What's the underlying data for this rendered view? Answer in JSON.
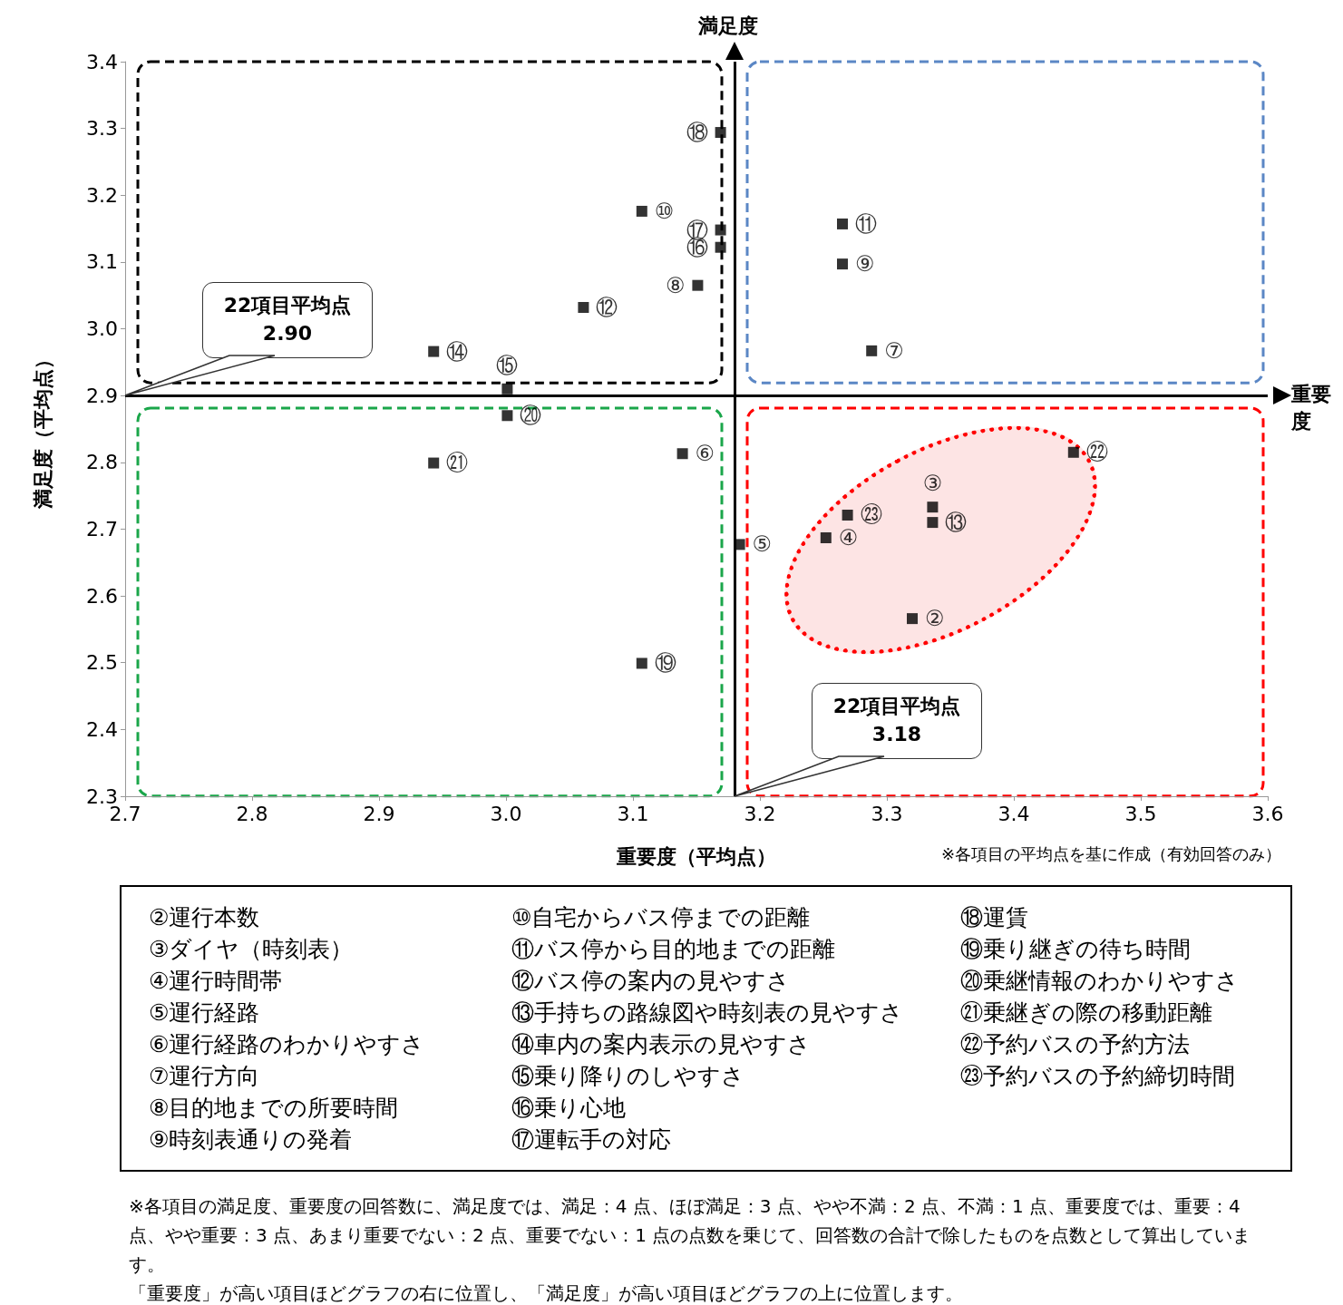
{
  "chart_data": {
    "type": "scatter",
    "xlabel": "重要度（平均点）",
    "ylabel": "満足度（平均点）",
    "xlim": [
      2.7,
      3.6
    ],
    "xticks": [
      2.7,
      2.8,
      2.9,
      {
        "value": 3,
        "label": "3.0"
      },
      3.1,
      3.2,
      3.3,
      3.4,
      3.5,
      3.6
    ],
    "ylim": [
      2.3,
      3.4
    ],
    "yticks": [
      2.3,
      2.4,
      2.5,
      2.6,
      2.7,
      2.8,
      2.9,
      {
        "value": 3,
        "label": "3.0"
      },
      3.1,
      3.2,
      3.3,
      3.4
    ],
    "grid": false,
    "marker": "square",
    "series": [
      {
        "color": "#000000",
        "x": [
          3.32,
          3.336,
          3.252,
          3.184,
          3.139,
          3.288,
          3.151,
          3.265,
          3.107,
          3.265,
          3.061,
          3.336,
          2.943,
          3.001,
          3.169,
          3.169,
          3.169,
          3.107,
          3.001,
          2.943,
          3.447,
          3.269
        ],
        "values": [
          2.566,
          2.733,
          2.687,
          2.677,
          2.813,
          2.967,
          3.065,
          3.097,
          3.176,
          3.157,
          3.032,
          2.71,
          2.966,
          2.91,
          3.122,
          3.148,
          3.294,
          2.499,
          2.87,
          2.799,
          2.815,
          2.721
        ],
        "value_labels": [
          "②",
          "③",
          "④",
          "⑤",
          "⑥",
          "⑦",
          "⑧",
          "⑨",
          "⑩",
          "⑪",
          "⑫",
          "⑬",
          "⑭",
          "⑮",
          "⑯",
          "⑰",
          "⑱",
          "⑲",
          "⑳",
          "㉑",
          "㉒",
          "㉓"
        ]
      }
    ],
    "ref_lines": [
      {
        "axis": "x",
        "value": 3.18,
        "label": "22項目平均点\n3.18",
        "color": "#000000"
      },
      {
        "axis": "y",
        "value": 2.9,
        "label": "22項目平均点\n2.90",
        "color": "#000000"
      }
    ],
    "annotations": [
      "満足度",
      "重要度",
      "※各項目の平均点を基に作成（有効回答のみ）",
      "②運行本数",
      "③ダイヤ（時刻表）",
      "④運行時間帯",
      "⑤運行経路",
      "⑥運行経路のわかりやすさ",
      "⑦運行方向",
      "⑧目的地までの所要時間",
      "⑨時刻表通りの発着",
      "⑩自宅からバス停までの距離",
      "⑪バス停から目的地までの距離",
      "⑫バス停の案内の見やすさ",
      "⑬手持ちの路線図や時刻表の見やすさ",
      "⑭車内の案内表示の見やすさ",
      "⑮乗り降りのしやすさ",
      "⑯乗り心地",
      "⑰運転手の対応",
      "⑱運賃",
      "⑲乗り継ぎの待ち時間",
      "⑳乗継情報のわかりやすさ",
      "㉑乗継ぎの際の移動距離",
      "㉒予約バスの予約方法",
      "㉓予約バスの予約締切時間",
      "※各項目の満足度、重要度の回答数に、満足度では、満足：4 点、ほぼ満足：3 点、やや不満：2 点、不満：1 点、重要度では、重要：4 点、やや重要：3 点、あまり重要でない：2 点、重要でない：1 点の点数を乗じて、回答数の合計で除したものを点数として算出しています。",
      "「重要度」が高い項目ほどグラフの右に位置し、「満足度」が高い項目ほどグラフの上に位置します。"
    ]
  }
}
